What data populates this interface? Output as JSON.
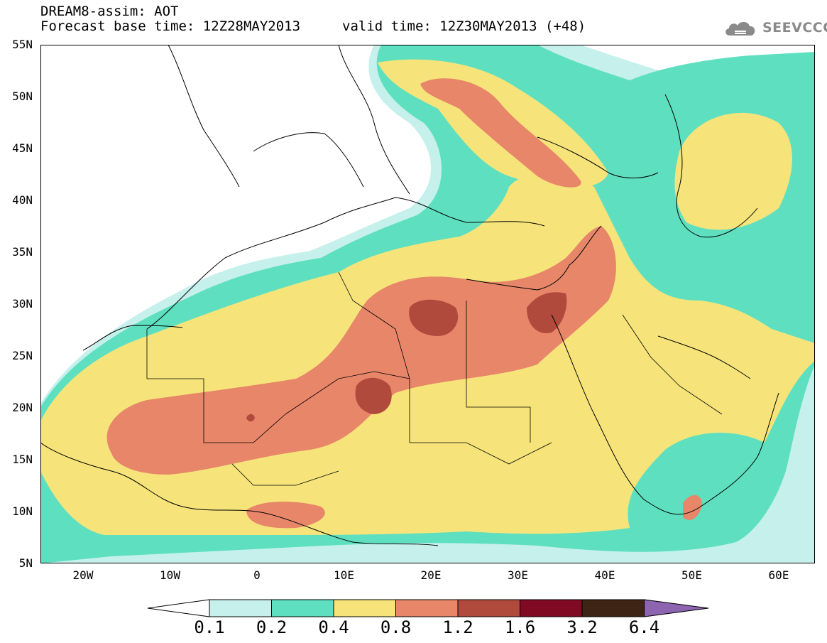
{
  "header": {
    "title_line1": "DREAM8-assim: AOT",
    "title_line2": "Forecast base time: 12Z28MAY2013",
    "valid_time": "valid time: 12Z30MAY2013 (+48)"
  },
  "logo": {
    "text": "SEEVCCC",
    "icon": "cloud-icon",
    "color": "#8a8a8a"
  },
  "map": {
    "latitude_labels": [
      "55N",
      "50N",
      "45N",
      "40N",
      "35N",
      "30N",
      "25N",
      "20N",
      "15N",
      "10N",
      "5N"
    ],
    "longitude_labels": [
      "20W",
      "10W",
      "0",
      "10E",
      "20E",
      "30E",
      "40E",
      "50E",
      "60E"
    ],
    "extent": {
      "lon": [
        -25,
        65
      ],
      "lat": [
        5,
        55
      ]
    },
    "field": "AOT"
  },
  "legend": {
    "labels": [
      "0.1",
      "0.2",
      "0.4",
      "0.8",
      "1.2",
      "1.6",
      "3.2",
      "6.4"
    ],
    "colors": [
      "#c6f0ec",
      "#5ee0c0",
      "#f6e47a",
      "#e8866a",
      "#b04a3c",
      "#800a22",
      "#3e2414",
      "#8c64b0"
    ]
  },
  "palette": {
    "c01": "#c6f0ec",
    "c02": "#5ee0c0",
    "c04": "#f6e47a",
    "c08": "#e8866a",
    "c12": "#b04a3c"
  }
}
